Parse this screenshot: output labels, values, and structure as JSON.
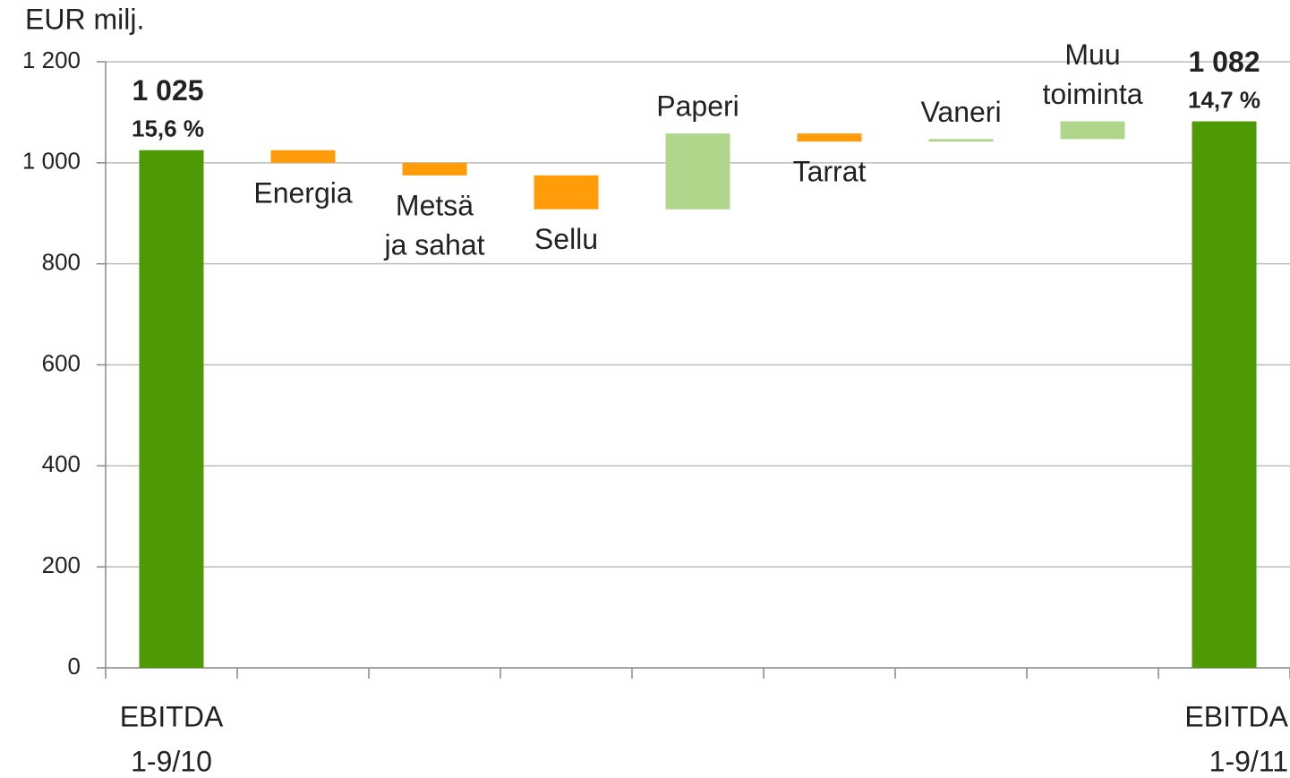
{
  "chart_data": {
    "type": "waterfall",
    "axis_label": "EUR milj.",
    "categories": [
      [
        "EBITDA",
        "1-9/10"
      ],
      [
        "Energia"
      ],
      [
        "Metsä",
        "ja sahat"
      ],
      [
        "Sellu"
      ],
      [
        "Paperi"
      ],
      [
        "Tarrat"
      ],
      [
        "Vaneri"
      ],
      [
        "Muu",
        "toiminta"
      ],
      [
        "EBITDA",
        "1-9/11"
      ]
    ],
    "values": [
      1025,
      -25,
      -25,
      -67,
      150,
      -16,
      5,
      35,
      1082
    ],
    "value_labels": [
      "1 025",
      null,
      null,
      null,
      null,
      null,
      null,
      null,
      "1 082"
    ],
    "annotations": [
      "15,6 %",
      null,
      null,
      null,
      null,
      null,
      null,
      null,
      "14,7 %"
    ],
    "total_indices": [
      0,
      8
    ],
    "colors": {
      "total": "#4e9a06",
      "increase": "#b0d68c",
      "decrease": "#ff9c0a"
    },
    "ylim": [
      0,
      1200
    ],
    "yticks": [
      0,
      200,
      400,
      600,
      800,
      {
        "value": 1000,
        "label": "1 000"
      },
      {
        "value": 1200,
        "label": "1 200"
      }
    ],
    "grid": true
  }
}
